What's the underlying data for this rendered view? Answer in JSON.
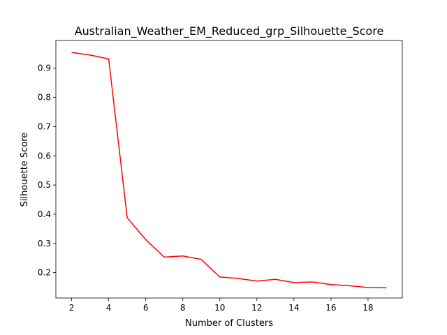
{
  "chart_data": {
    "type": "line",
    "title": "Australian_Weather_EM_Reduced_grp_Silhouette_Score",
    "xlabel": "Number of Clusters",
    "ylabel": "Silhouette Score",
    "xlim": [
      1.15,
      19.85
    ],
    "ylim": [
      0.113,
      0.995
    ],
    "xticks": [
      2,
      4,
      6,
      8,
      10,
      12,
      14,
      16,
      18
    ],
    "yticks": [
      0.2,
      0.3,
      0.4,
      0.5,
      0.6,
      0.7,
      0.8,
      0.9
    ],
    "grid": false,
    "line_color": "#ff0000",
    "series": [
      {
        "x": [
          2,
          3,
          4,
          5,
          6,
          7,
          8,
          9,
          10,
          11,
          12,
          13,
          14,
          15,
          16,
          17,
          18,
          19
        ],
        "values": [
          0.954,
          0.945,
          0.932,
          0.388,
          0.313,
          0.253,
          0.257,
          0.245,
          0.185,
          0.18,
          0.171,
          0.177,
          0.166,
          0.168,
          0.159,
          0.155,
          0.149,
          0.148
        ]
      }
    ]
  }
}
